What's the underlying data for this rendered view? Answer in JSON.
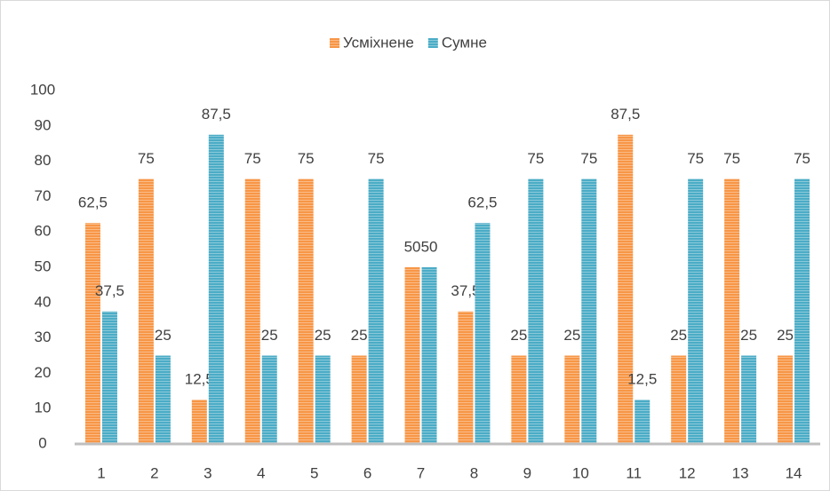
{
  "chart_data": {
    "type": "bar",
    "categories": [
      "1",
      "2",
      "3",
      "4",
      "5",
      "6",
      "7",
      "8",
      "9",
      "10",
      "11",
      "12",
      "13",
      "14"
    ],
    "series": [
      {
        "name": "Усміхнене",
        "color": "#f79646",
        "values": [
          62.5,
          75,
          12.5,
          75,
          75,
          25,
          50,
          37.5,
          25,
          25,
          87.5,
          25,
          75,
          25
        ],
        "value_labels": [
          "62,5",
          "75",
          "12,5",
          "75",
          "75",
          "25",
          "50",
          "37,5",
          "25",
          "25",
          "87,5",
          "25",
          "75",
          "25"
        ]
      },
      {
        "name": "Сумне",
        "color": "#4bacc6",
        "values": [
          37.5,
          25,
          87.5,
          25,
          25,
          75,
          50,
          62.5,
          75,
          75,
          12.5,
          75,
          25,
          75
        ],
        "value_labels": [
          "37,5",
          "25",
          "87,5",
          "25",
          "25",
          "75",
          "50",
          "62,5",
          "75",
          "75",
          "12,5",
          "75",
          "25",
          "75"
        ]
      }
    ],
    "ylim": [
      0,
      100
    ],
    "yticks": [
      0,
      10,
      20,
      30,
      40,
      50,
      60,
      70,
      80,
      90,
      100
    ],
    "grid": false,
    "legend": "top"
  }
}
